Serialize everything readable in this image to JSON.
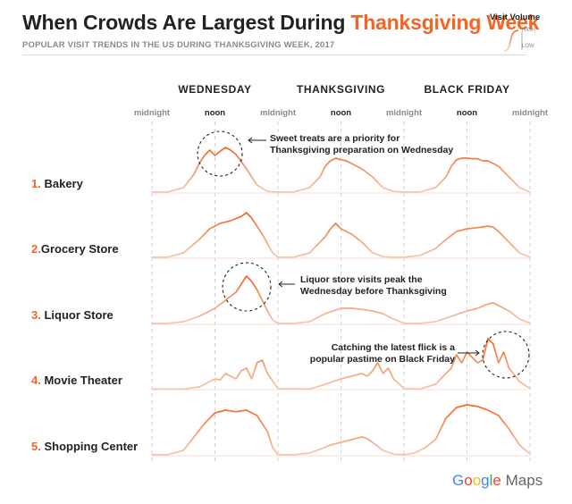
{
  "header": {
    "title_prefix": "When Crowds Are Largest During ",
    "title_highlight": "Thanksgiving Week",
    "subtitle": "POPULAR VISIT TRENDS IN THE US DURING THANKSGIVING WEEK, 2017"
  },
  "legend": {
    "title": "Visit Volume",
    "high": "HIGH",
    "low": "LOW"
  },
  "colors": {
    "accent": "#f26522",
    "line_low": "#f4c6ae",
    "text": "#222222",
    "muted": "#8a8a8a"
  },
  "chart_data": {
    "type": "line",
    "days": [
      "WEDNESDAY",
      "THANKSGIVING",
      "BLACK FRIDAY"
    ],
    "x_ticks": [
      "midnight",
      "noon",
      "midnight",
      "noon",
      "midnight",
      "noon",
      "midnight"
    ],
    "x_tick_hours": [
      0,
      12,
      24,
      36,
      48,
      60,
      72
    ],
    "xlim": [
      0,
      72
    ],
    "ylim": [
      0,
      1
    ],
    "y_encoding": "relative visit volume (low to high), also shown by line color",
    "series": [
      {
        "number": "1.",
        "name": "Bakery",
        "x": [
          0,
          3,
          6,
          8,
          9,
          10,
          11,
          12,
          13,
          14,
          15,
          16,
          18,
          20,
          22,
          24,
          27,
          30,
          32,
          33,
          34,
          35,
          36,
          37,
          38,
          39,
          40,
          42,
          44,
          46,
          48,
          51,
          54,
          56,
          57,
          58,
          59,
          60,
          61,
          62,
          63,
          64,
          65,
          66,
          68,
          70,
          72
        ],
        "y": [
          0.02,
          0.02,
          0.1,
          0.35,
          0.55,
          0.7,
          0.8,
          0.7,
          0.78,
          0.85,
          0.8,
          0.72,
          0.45,
          0.15,
          0.03,
          0.02,
          0.02,
          0.1,
          0.3,
          0.5,
          0.6,
          0.65,
          0.62,
          0.6,
          0.55,
          0.5,
          0.45,
          0.3,
          0.1,
          0.03,
          0.02,
          0.02,
          0.1,
          0.3,
          0.5,
          0.62,
          0.65,
          0.65,
          0.64,
          0.64,
          0.6,
          0.6,
          0.55,
          0.5,
          0.3,
          0.1,
          0.02
        ]
      },
      {
        "number": "2.",
        "name": "Grocery Store",
        "x": [
          0,
          3,
          6,
          9,
          11,
          13,
          15,
          17,
          18,
          19,
          21,
          23,
          24,
          27,
          30,
          33,
          34,
          35,
          36,
          37,
          38,
          40,
          42,
          44,
          46,
          48,
          51,
          54,
          56,
          58,
          60,
          62,
          64,
          65,
          66,
          68,
          70,
          72
        ],
        "y": [
          0.02,
          0.02,
          0.1,
          0.35,
          0.55,
          0.65,
          0.7,
          0.78,
          0.85,
          0.75,
          0.45,
          0.1,
          0.02,
          0.02,
          0.1,
          0.4,
          0.55,
          0.65,
          0.55,
          0.5,
          0.45,
          0.3,
          0.1,
          0.03,
          0.02,
          0.02,
          0.05,
          0.18,
          0.35,
          0.5,
          0.55,
          0.57,
          0.6,
          0.58,
          0.5,
          0.3,
          0.1,
          0.02
        ]
      },
      {
        "number": "3.",
        "name": "Liquor Store",
        "x": [
          0,
          3,
          6,
          9,
          12,
          14,
          16,
          17,
          18,
          19,
          20,
          21,
          22,
          23,
          24,
          27,
          30,
          33,
          36,
          38,
          40,
          42,
          44,
          46,
          48,
          51,
          54,
          57,
          60,
          62,
          64,
          65,
          66,
          68,
          70,
          72
        ],
        "y": [
          0.02,
          0.02,
          0.05,
          0.15,
          0.3,
          0.45,
          0.6,
          0.75,
          0.9,
          0.8,
          0.65,
          0.45,
          0.25,
          0.08,
          0.02,
          0.02,
          0.05,
          0.2,
          0.3,
          0.3,
          0.28,
          0.25,
          0.2,
          0.1,
          0.02,
          0.02,
          0.05,
          0.15,
          0.25,
          0.3,
          0.38,
          0.4,
          0.35,
          0.25,
          0.1,
          0.02
        ]
      },
      {
        "number": "4.",
        "name": "Movie Theater",
        "x": [
          0,
          6,
          9,
          11,
          12,
          13,
          14,
          15,
          16,
          17,
          18,
          19,
          20,
          21,
          22,
          24,
          30,
          33,
          36,
          38,
          40,
          41,
          42,
          43,
          44,
          45,
          46,
          48,
          51,
          54,
          56,
          57,
          58,
          59,
          60,
          61,
          62,
          63,
          64,
          65,
          66,
          67,
          68,
          70,
          72
        ],
        "y": [
          0.01,
          0.01,
          0.05,
          0.15,
          0.2,
          0.18,
          0.3,
          0.25,
          0.2,
          0.35,
          0.4,
          0.2,
          0.5,
          0.55,
          0.3,
          0.02,
          0.01,
          0.1,
          0.2,
          0.25,
          0.3,
          0.25,
          0.35,
          0.5,
          0.3,
          0.4,
          0.2,
          0.02,
          0.01,
          0.1,
          0.3,
          0.4,
          0.65,
          0.5,
          0.7,
          0.6,
          0.5,
          0.55,
          0.95,
          0.85,
          0.5,
          0.7,
          0.4,
          0.15,
          0.02
        ]
      },
      {
        "number": "5.",
        "name": "Shopping Center",
        "x": [
          0,
          3,
          6,
          8,
          10,
          12,
          14,
          16,
          18,
          20,
          22,
          23,
          24,
          27,
          30,
          32,
          34,
          36,
          38,
          40,
          41,
          42,
          44,
          46,
          48,
          50,
          52,
          54,
          56,
          58,
          60,
          62,
          64,
          66,
          68,
          70,
          72
        ],
        "y": [
          0.02,
          0.02,
          0.1,
          0.35,
          0.6,
          0.8,
          0.85,
          0.82,
          0.85,
          0.75,
          0.45,
          0.15,
          0.02,
          0.02,
          0.05,
          0.12,
          0.2,
          0.25,
          0.3,
          0.35,
          0.32,
          0.25,
          0.1,
          0.03,
          0.02,
          0.05,
          0.15,
          0.3,
          0.7,
          0.9,
          0.95,
          0.92,
          0.85,
          0.75,
          0.5,
          0.2,
          0.03
        ]
      }
    ],
    "annotations": [
      {
        "series": "Bakery",
        "lines": [
          "Sweet treats are a priority for",
          "Thanksgiving preparation on Wednesday"
        ]
      },
      {
        "series": "Liquor Store",
        "lines": [
          "Liquor store visits peak the",
          "Wednesday before Thanksgiving"
        ]
      },
      {
        "series": "Movie Theater",
        "lines": [
          "Catching the latest flick is a",
          "popular pastime on Black Friday"
        ]
      }
    ]
  },
  "footer": {
    "brand_google": "Google",
    "brand_maps": "Maps"
  }
}
